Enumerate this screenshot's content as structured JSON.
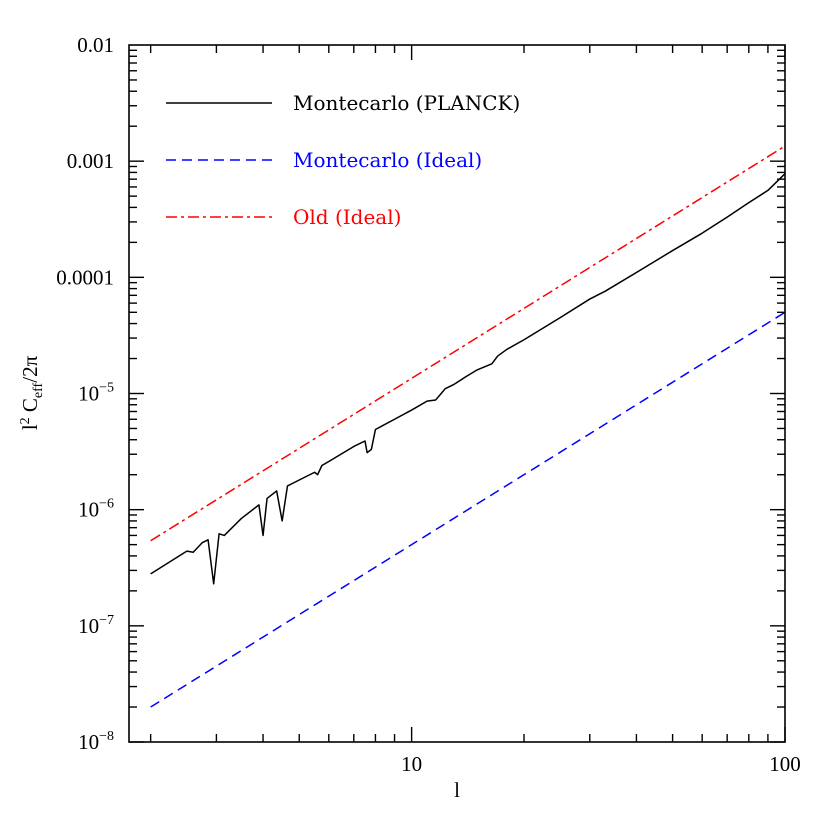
{
  "chart_data": {
    "type": "line",
    "title": "",
    "xlabel": "l",
    "ylabel_main": "l",
    "ylabel_sup": "2",
    "ylabel_c": " C",
    "ylabel_sub": "eff",
    "ylabel_tail": "/2π",
    "x_scale": "log",
    "y_scale": "log",
    "xlim": [
      1.75,
      100
    ],
    "ylim": [
      1e-08,
      0.01
    ],
    "grid": false,
    "legend_placement": "top-left",
    "x_ticks": [
      {
        "value": 10,
        "label": "10"
      },
      {
        "value": 100,
        "label": "100"
      }
    ],
    "y_ticks": [
      {
        "value": 1e-08,
        "mant": "10",
        "exp": "−8",
        "plain": ""
      },
      {
        "value": 1e-07,
        "mant": "10",
        "exp": "−7",
        "plain": ""
      },
      {
        "value": 1e-06,
        "mant": "10",
        "exp": "−6",
        "plain": ""
      },
      {
        "value": 1e-05,
        "mant": "10",
        "exp": "−5",
        "plain": ""
      },
      {
        "value": 0.0001,
        "mant": "",
        "exp": "",
        "plain": "0.0001"
      },
      {
        "value": 0.001,
        "mant": "",
        "exp": "",
        "plain": "0.001"
      },
      {
        "value": 0.01,
        "mant": "",
        "exp": "",
        "plain": "0.01"
      }
    ],
    "series": [
      {
        "name": "Montecarlo (PLANCK)",
        "color": "#000000",
        "dash": "solid",
        "x": [
          2,
          2.5,
          2.6,
          2.75,
          2.85,
          2.95,
          3.05,
          3.15,
          3.5,
          3.9,
          4.0,
          4.1,
          4.35,
          4.5,
          4.65,
          5.0,
          5.5,
          5.6,
          5.75,
          6.0,
          7.0,
          7.5,
          7.6,
          7.8,
          8.0,
          9.0,
          10.0,
          11.0,
          11.6,
          12.0,
          12.3,
          13.0,
          14.0,
          15.0,
          16.4,
          17.0,
          18.0,
          20.0,
          25.0,
          30.0,
          33.0,
          40.0,
          50.0,
          60.0,
          70.0,
          80.0,
          90.0,
          100.0
        ],
        "y": [
          2.8e-07,
          4.4e-07,
          4.3e-07,
          5.2e-07,
          5.5e-07,
          2.3e-07,
          6.2e-07,
          6e-07,
          8.4e-07,
          1.1e-06,
          6e-07,
          1.25e-06,
          1.45e-06,
          8e-07,
          1.6e-06,
          1.8e-06,
          2.1e-06,
          2e-06,
          2.4e-06,
          2.6e-06,
          3.5e-06,
          3.9e-06,
          3.1e-06,
          3.3e-06,
          4.9e-06,
          6e-06,
          7.2e-06,
          8.6e-06,
          8.8e-06,
          1e-05,
          1.1e-05,
          1.2e-05,
          1.4e-05,
          1.6e-05,
          1.8e-05,
          2.1e-05,
          2.4e-05,
          2.9e-05,
          4.5e-05,
          6.5e-05,
          7.6e-05,
          0.00011,
          0.00017,
          0.00024,
          0.00033,
          0.00044,
          0.00056,
          0.00078
        ]
      },
      {
        "name": "Montecarlo (Ideal)",
        "color": "#0000ff",
        "dash": "dashed",
        "x": [
          2,
          100
        ],
        "y": [
          2e-08,
          5e-05
        ]
      },
      {
        "name": "Old (Ideal)",
        "color": "#ff0000",
        "dash": "dashdot",
        "x": [
          2,
          100
        ],
        "y": [
          5.4e-07,
          0.00135
        ]
      }
    ]
  }
}
